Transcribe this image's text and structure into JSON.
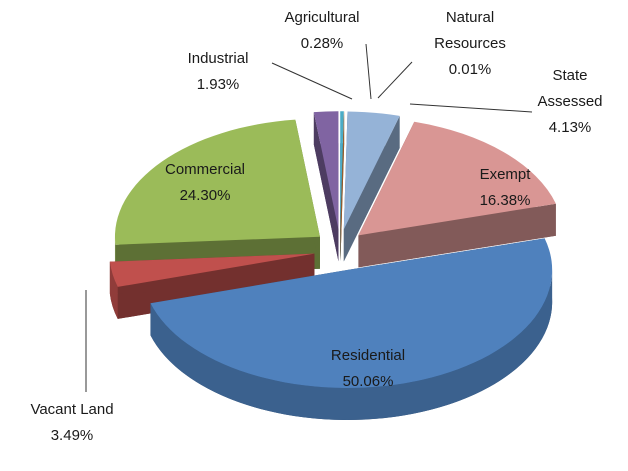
{
  "chart_data": {
    "type": "pie",
    "categories": [
      "Agricultural",
      "Natural Resources",
      "State Assessed",
      "Exempt",
      "Residential",
      "Vacant Land",
      "Commercial",
      "Industrial"
    ],
    "values": [
      0.28,
      0.01,
      4.13,
      16.38,
      50.06,
      3.49,
      24.3,
      1.93
    ],
    "value_labels": [
      "0.28%",
      "0.01%",
      "4.13%",
      "16.38%",
      "50.06%",
      "3.49%",
      "24.30%",
      "1.93%"
    ],
    "colors": [
      "#4bacc6",
      "#f79646",
      "#95b3d7",
      "#d99694",
      "#4f81bd",
      "#c0504d",
      "#9bbb59",
      "#8064a2"
    ]
  }
}
